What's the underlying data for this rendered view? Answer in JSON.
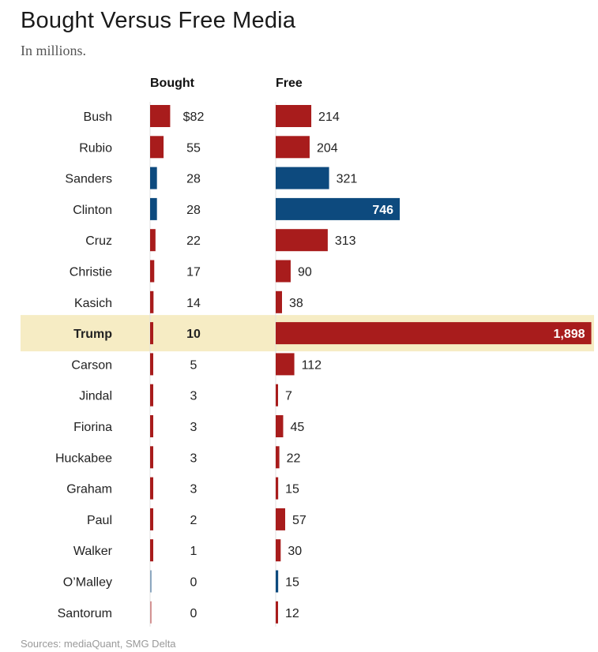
{
  "title": "Bought Versus Free Media",
  "subtitle": "In millions.",
  "source": "Sources: mediaQuant, SMG Delta",
  "colors": {
    "republican": "#a81c1c",
    "democrat": "#0d4a7e",
    "highlight": "#f6ecc4",
    "separator": "#e0e0e0",
    "label": "#222222"
  },
  "chart_data": {
    "type": "bar",
    "title": "Bought Versus Free Media",
    "subtitle": "In millions.",
    "column_headers": {
      "bought": "Bought",
      "free": "Free"
    },
    "highlighted_category": "Trump",
    "categories": [
      "Bush",
      "Rubio",
      "Sanders",
      "Clinton",
      "Cruz",
      "Christie",
      "Kasich",
      "Trump",
      "Carson",
      "Jindal",
      "Fiorina",
      "Huckabee",
      "Graham",
      "Paul",
      "Walker",
      "O’Malley",
      "Santorum"
    ],
    "party": [
      "R",
      "R",
      "D",
      "D",
      "R",
      "R",
      "R",
      "R",
      "R",
      "R",
      "R",
      "R",
      "R",
      "R",
      "R",
      "D",
      "R"
    ],
    "series": [
      {
        "name": "Bought",
        "values": [
          82,
          55,
          28,
          28,
          22,
          17,
          14,
          10,
          5,
          3,
          3,
          3,
          3,
          2,
          1,
          0,
          0
        ],
        "labels": [
          "$82",
          "55",
          "28",
          "28",
          "22",
          "17",
          "14",
          "10",
          "5",
          "3",
          "3",
          "3",
          "3",
          "2",
          "1",
          "0",
          "0"
        ]
      },
      {
        "name": "Free",
        "values": [
          214,
          204,
          321,
          746,
          313,
          90,
          38,
          1898,
          112,
          7,
          45,
          22,
          15,
          57,
          30,
          15,
          12
        ],
        "labels": [
          "214",
          "204",
          "321",
          "746",
          "313",
          "90",
          "38",
          "1,898",
          "112",
          "7",
          "45",
          "22",
          "15",
          "57",
          "30",
          "15",
          "12"
        ]
      }
    ]
  }
}
